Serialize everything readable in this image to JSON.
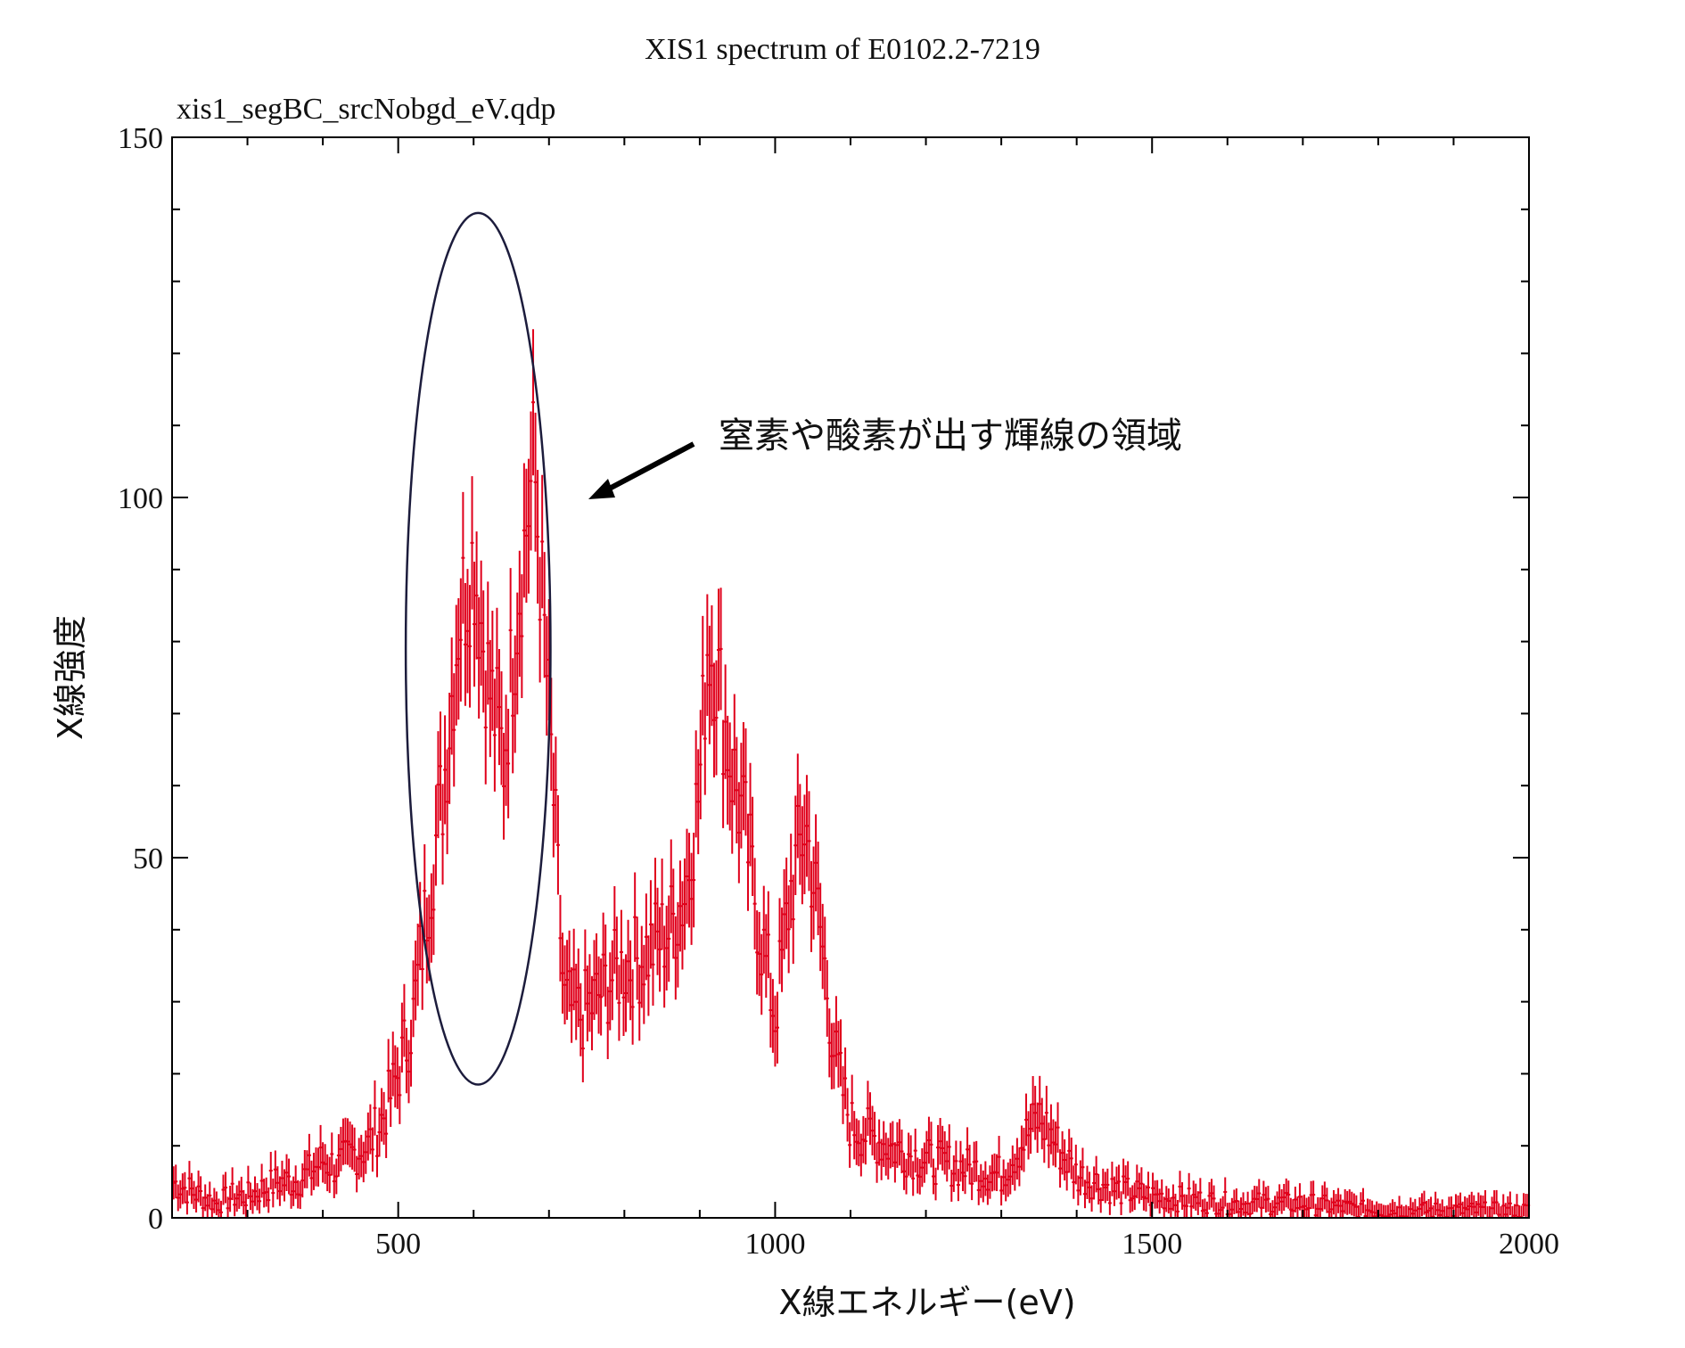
{
  "chart_data": {
    "type": "scatter",
    "title": "XIS1 spectrum of E0102.2-7219",
    "subtitle": "xis1_segBC_srcNobgd_eV.qdp",
    "xlabel": "X線エネルギー(eV)",
    "ylabel": "X線強度",
    "xlim": [
      200,
      2000
    ],
    "ylim": [
      0,
      150
    ],
    "x_ticks": [
      {
        "value": 500,
        "label": "500"
      },
      {
        "value": 1000,
        "label": "1000"
      },
      {
        "value": 1500,
        "label": "1500"
      },
      {
        "value": 2000,
        "label": "2000"
      }
    ],
    "y_ticks": [
      {
        "value": 0,
        "label": "0"
      },
      {
        "value": 50,
        "label": "50"
      },
      {
        "value": 100,
        "label": "100"
      },
      {
        "value": 150,
        "label": "150"
      }
    ],
    "grid": false,
    "series_color": "#e0001b",
    "annotation": {
      "text": "窒素や酸素が出す輝線の領域",
      "ellipse_center": [
        606,
        79
      ],
      "ellipse_half_width_ev": 96,
      "ellipse_half_height": 60.5,
      "color": "#1c1c3c"
    },
    "series": [
      {
        "x": [
          200,
          220,
          240,
          260,
          280,
          300,
          320,
          340,
          360,
          380,
          400,
          420,
          440,
          460,
          480,
          500,
          520,
          540,
          560,
          580,
          600,
          620,
          640,
          660,
          680,
          700,
          720,
          740,
          760,
          780,
          800,
          820,
          840,
          860,
          880,
          900,
          910,
          920,
          940,
          960,
          980,
          1000,
          1020,
          1040,
          1060,
          1080,
          1100,
          1150,
          1200,
          1250,
          1300,
          1350,
          1400,
          1450,
          1500,
          1600,
          1700,
          1800,
          1900,
          2000
        ],
        "y": [
          5,
          4,
          3,
          2,
          3,
          3,
          4,
          5,
          5,
          6,
          8,
          7,
          9,
          10,
          14,
          20,
          28,
          45,
          60,
          83,
          92,
          74,
          64,
          87,
          105,
          70,
          30,
          28,
          30,
          33,
          35,
          36,
          38,
          40,
          45,
          60,
          80,
          78,
          64,
          54,
          40,
          28,
          45,
          55,
          40,
          22,
          13,
          10,
          8,
          7,
          6,
          14,
          6,
          4,
          3,
          2,
          2,
          1,
          1,
          1
        ]
      }
    ]
  }
}
